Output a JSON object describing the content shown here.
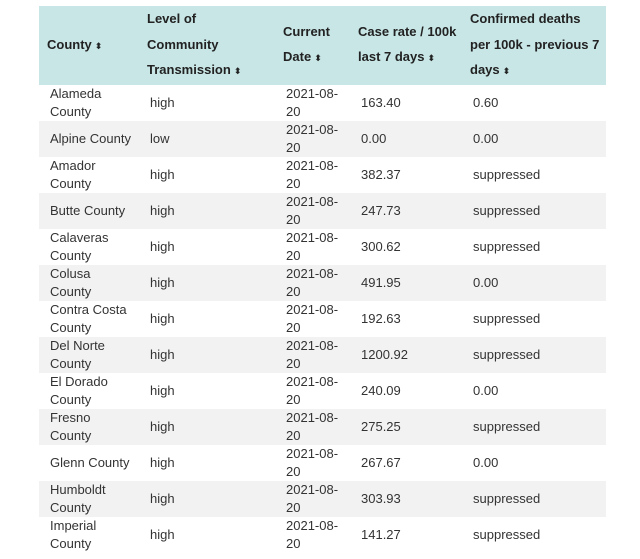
{
  "table": {
    "headers": [
      "County",
      "Level of Community Transmission",
      "Current Date",
      "Case rate / 100k last 7 days",
      "Confirmed deaths per 100k - previous 7 days"
    ],
    "sort_icon": "⬍",
    "rows": [
      [
        "Alameda County",
        "high",
        "2021-08-20",
        "163.40",
        "0.60"
      ],
      [
        "Alpine County",
        "low",
        "2021-08-20",
        "0.00",
        "0.00"
      ],
      [
        "Amador County",
        "high",
        "2021-08-20",
        "382.37",
        "suppressed"
      ],
      [
        "Butte County",
        "high",
        "2021-08-20",
        "247.73",
        "suppressed"
      ],
      [
        "Calaveras County",
        "high",
        "2021-08-20",
        "300.62",
        "suppressed"
      ],
      [
        "Colusa County",
        "high",
        "2021-08-20",
        "491.95",
        "0.00"
      ],
      [
        "Contra Costa County",
        "high",
        "2021-08-20",
        "192.63",
        "suppressed"
      ],
      [
        "Del Norte County",
        "high",
        "2021-08-20",
        "1200.92",
        "suppressed"
      ],
      [
        "El Dorado County",
        "high",
        "2021-08-20",
        "240.09",
        "0.00"
      ],
      [
        "Fresno County",
        "high",
        "2021-08-20",
        "275.25",
        "suppressed"
      ],
      [
        "Glenn County",
        "high",
        "2021-08-20",
        "267.67",
        "0.00"
      ],
      [
        "Humboldt County",
        "high",
        "2021-08-20",
        "303.93",
        "suppressed"
      ],
      [
        "Imperial County",
        "high",
        "2021-08-20",
        "141.27",
        "suppressed"
      ]
    ]
  },
  "colors": {
    "header_bg": "#c8e6e6",
    "stripe_bg": "#f2f2f2"
  }
}
